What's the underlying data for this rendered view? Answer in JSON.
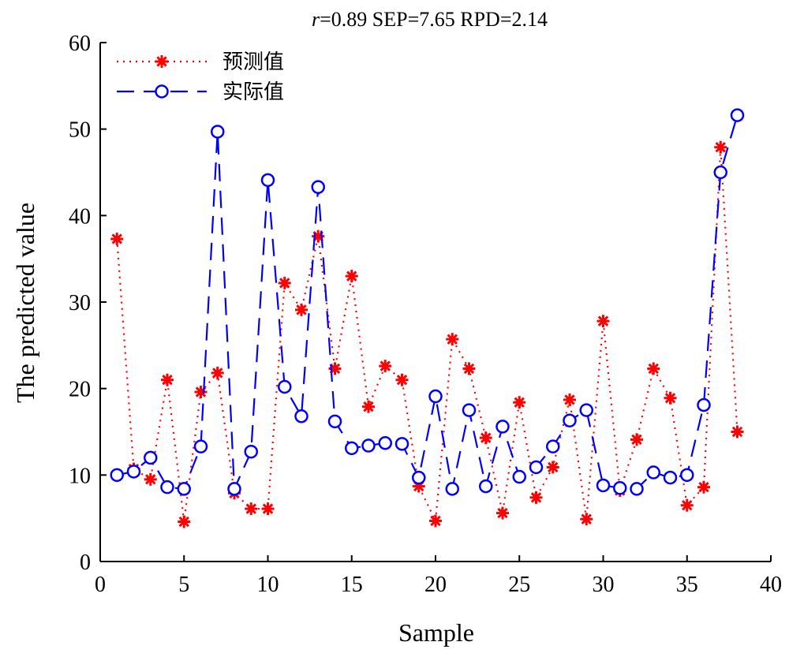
{
  "chart_data": {
    "type": "line",
    "stats_text": {
      "r_label": "r",
      "rest": "=0.89  SEP=7.65  RPD=2.14"
    },
    "xlabel": "Sample",
    "ylabel": "The predicted value",
    "xlim": [
      0,
      40
    ],
    "ylim": [
      0,
      60
    ],
    "xticks": [
      "0",
      "5",
      "10",
      "15",
      "20",
      "25",
      "30",
      "35",
      "40"
    ],
    "yticks": [
      "0",
      "10",
      "20",
      "30",
      "40",
      "50",
      "60"
    ],
    "legend_position": "top-left",
    "grid": false,
    "x": [
      1,
      2,
      3,
      4,
      5,
      6,
      7,
      8,
      9,
      10,
      11,
      12,
      13,
      14,
      15,
      16,
      17,
      18,
      19,
      20,
      21,
      22,
      23,
      24,
      25,
      26,
      27,
      28,
      29,
      30,
      31,
      32,
      33,
      34,
      35,
      36,
      37,
      38
    ],
    "series": [
      {
        "name": "预测值",
        "color": "#ff0000",
        "line_style": "dotted",
        "marker": "asterisk",
        "values": [
          37.3,
          10.7,
          9.5,
          21.0,
          4.6,
          19.6,
          21.8,
          7.9,
          6.1,
          6.1,
          32.2,
          29.1,
          37.6,
          22.3,
          33.0,
          17.9,
          22.6,
          21.0,
          8.7,
          4.7,
          25.7,
          22.3,
          14.3,
          5.6,
          18.4,
          7.4,
          10.9,
          18.7,
          4.9,
          27.8,
          8.2,
          14.1,
          22.3,
          18.9,
          6.5,
          8.6,
          47.9,
          15.0
        ]
      },
      {
        "name": "实际值",
        "color": "#0000ff",
        "line_style": "dashed",
        "marker": "circle",
        "values": [
          10.0,
          10.4,
          12.0,
          8.6,
          8.4,
          13.3,
          49.7,
          8.4,
          12.7,
          44.1,
          20.2,
          16.8,
          43.3,
          16.2,
          13.1,
          13.4,
          13.7,
          13.6,
          9.7,
          19.1,
          8.4,
          17.5,
          8.7,
          15.6,
          9.8,
          10.9,
          13.3,
          16.3,
          17.5,
          8.8,
          8.5,
          8.4,
          10.3,
          9.7,
          10.0,
          18.1,
          45.0,
          51.6
        ]
      }
    ]
  }
}
